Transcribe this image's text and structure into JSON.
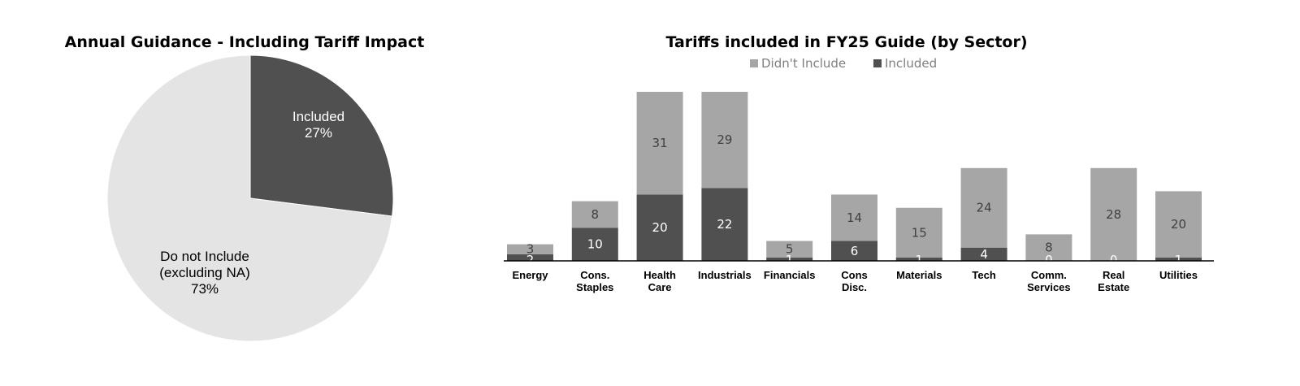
{
  "colors": {
    "included": "#505050",
    "not_included_pie": "#e4e4e4",
    "not_included_bar": "#a6a6a6",
    "axis": "#000000",
    "light_label": "#ffffff",
    "dark_label": "#404040",
    "legend_text": "#7f7f7f"
  },
  "chart_data": [
    {
      "type": "pie",
      "title": "Annual Guidance - Including Tariff Impact",
      "slices": [
        {
          "name": "Included",
          "label_lines": [
            "Included",
            "27%"
          ],
          "value": 27
        },
        {
          "name": "Do not Include (excluding NA)",
          "label_lines": [
            "Do not Include",
            "(excluding NA)",
            "73%"
          ],
          "value": 73
        }
      ]
    },
    {
      "type": "bar",
      "stacked": true,
      "title": "Tariffs included in FY25 Guide (by Sector)",
      "legend_position": "top",
      "categories": [
        [
          "Energy"
        ],
        [
          "Cons.",
          "Staples"
        ],
        [
          "Health",
          "Care"
        ],
        [
          "Industrials"
        ],
        [
          "Financials"
        ],
        [
          "Cons",
          "Disc."
        ],
        [
          "Materials"
        ],
        [
          "Tech"
        ],
        [
          "Comm.",
          "Services"
        ],
        [
          "Real",
          "Estate"
        ],
        [
          "Utilities"
        ]
      ],
      "series": [
        {
          "name": "Included",
          "values": [
            2,
            10,
            20,
            22,
            1,
            6,
            1,
            4,
            0,
            0,
            1
          ]
        },
        {
          "name": "Didn't Include",
          "values": [
            3,
            8,
            31,
            29,
            5,
            14,
            15,
            24,
            8,
            28,
            20
          ]
        }
      ],
      "legend_order": [
        "Didn't Include",
        "Included"
      ],
      "ylim": [
        0,
        51
      ]
    }
  ]
}
